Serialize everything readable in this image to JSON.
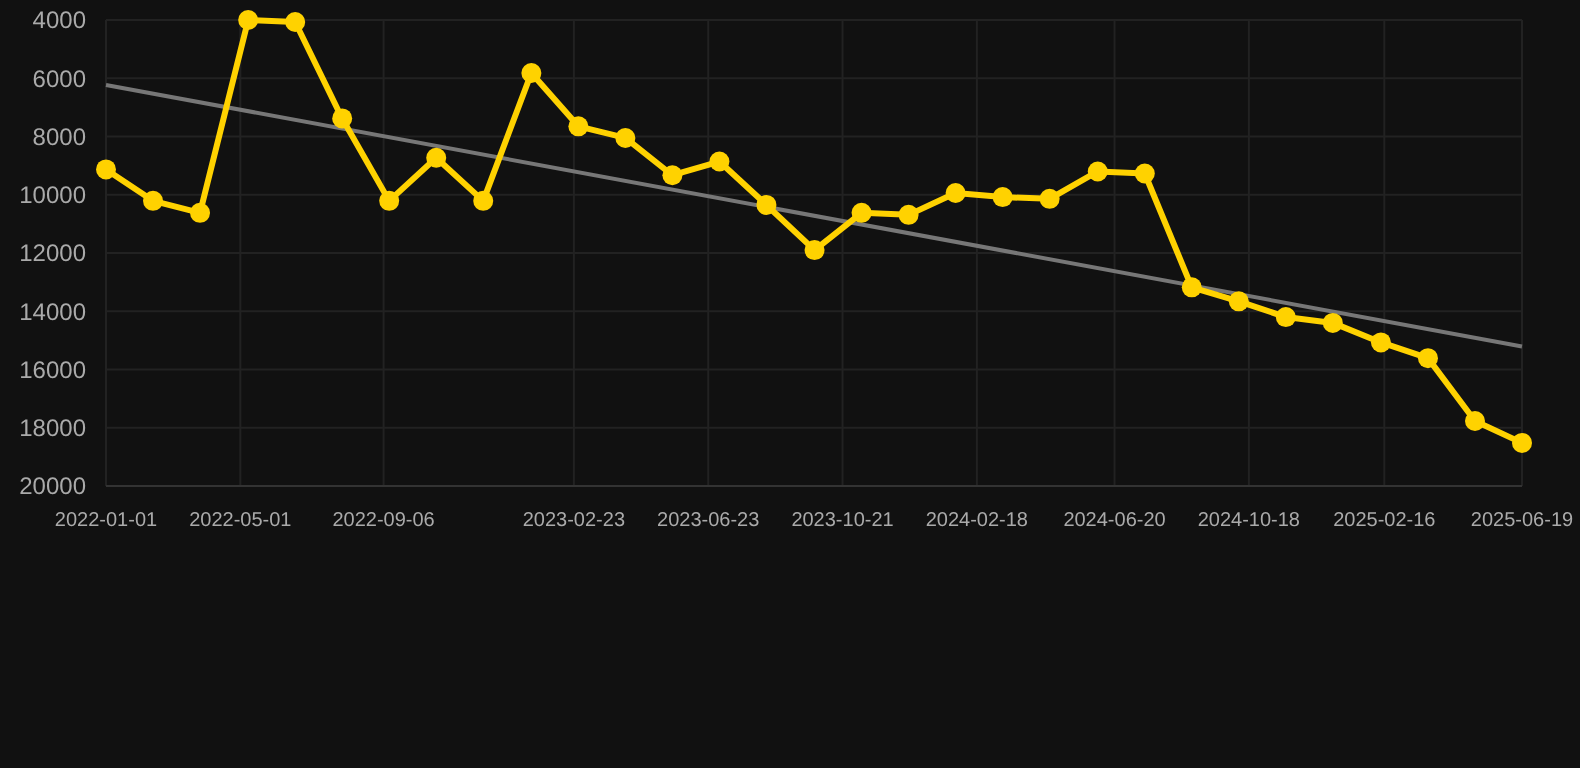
{
  "chart_data": {
    "type": "line",
    "x": [
      "2022-01-01",
      "2022-02-12",
      "2022-03-26",
      "2022-05-08",
      "2022-06-19",
      "2022-07-31",
      "2022-09-11",
      "2022-10-23",
      "2022-12-04",
      "2023-01-16",
      "2023-02-27",
      "2023-04-10",
      "2023-05-22",
      "2023-07-03",
      "2023-08-14",
      "2023-09-26",
      "2023-11-07",
      "2023-12-19",
      "2024-01-30",
      "2024-03-12",
      "2024-04-23",
      "2024-06-05",
      "2024-07-17",
      "2024-08-28",
      "2024-10-09",
      "2024-11-20",
      "2025-01-01",
      "2025-02-13",
      "2025-03-27",
      "2025-05-08",
      "2025-06-19"
    ],
    "series": [
      {
        "color": "#ffd200",
        "marker": "circle",
        "values": [
          9130,
          10210,
          10620,
          4000,
          4070,
          7380,
          10210,
          8730,
          10210,
          5820,
          7650,
          8050,
          9330,
          8860,
          10350,
          11900,
          10620,
          10690,
          9940,
          10080,
          10140,
          9200,
          9270,
          13180,
          13660,
          14200,
          14400,
          15070,
          15610,
          17770,
          18520
        ]
      },
      {
        "type": "line",
        "color": "#777777",
        "marker": "none",
        "x": [
          "2022-01-01",
          "2025-06-19"
        ],
        "values": [
          6230,
          15210
        ]
      }
    ],
    "ylim": [
      20000,
      4000
    ],
    "yticks": [
      20000,
      18000,
      16000,
      14000,
      12000,
      10000,
      8000,
      6000,
      4000
    ],
    "xlim": [
      "2022-01-01",
      "2025-06-19"
    ],
    "xticks": [
      "2022-01-01",
      "2022-05-01",
      "2022-09-06",
      "2023-02-23",
      "2023-06-23",
      "2023-10-21",
      "2024-02-18",
      "2024-06-20",
      "2024-10-18",
      "2025-02-16",
      "2025-06-19"
    ],
    "grid": true
  }
}
